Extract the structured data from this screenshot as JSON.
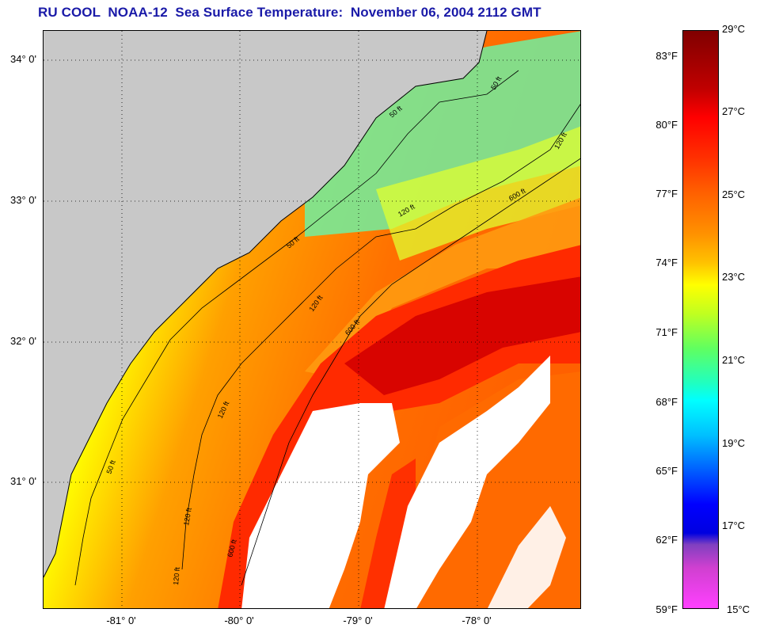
{
  "title": "RU COOL  NOAA-12  Sea Surface Temperature:  November 06, 2004 2112 GMT",
  "map": {
    "lat_labels": [
      "34° 0'",
      "33° 0'",
      "32° 0'",
      "31° 0'"
    ],
    "lon_labels": [
      "-81° 0'",
      "-80° 0'",
      "-79° 0'",
      "-78° 0'"
    ],
    "contour_labels": [
      "50 ft",
      "50 ft",
      "50 ft",
      "50 ft",
      "120 ft",
      "120 ft",
      "120 ft",
      "120 ft",
      "120 ft",
      "120 ft",
      "600 ft",
      "600 ft",
      "600 ft"
    ],
    "colors": {
      "land": "#c8c8c8",
      "cloud": "#ffffff"
    }
  },
  "colorbar": {
    "fahrenheit": [
      "83°F",
      "80°F",
      "77°F",
      "74°F",
      "71°F",
      "68°F",
      "65°F",
      "62°F",
      "59°F"
    ],
    "celsius": [
      "29°C",
      "27°C",
      "25°C",
      "23°C",
      "21°C",
      "19°C",
      "17°C",
      "15°C"
    ]
  }
}
